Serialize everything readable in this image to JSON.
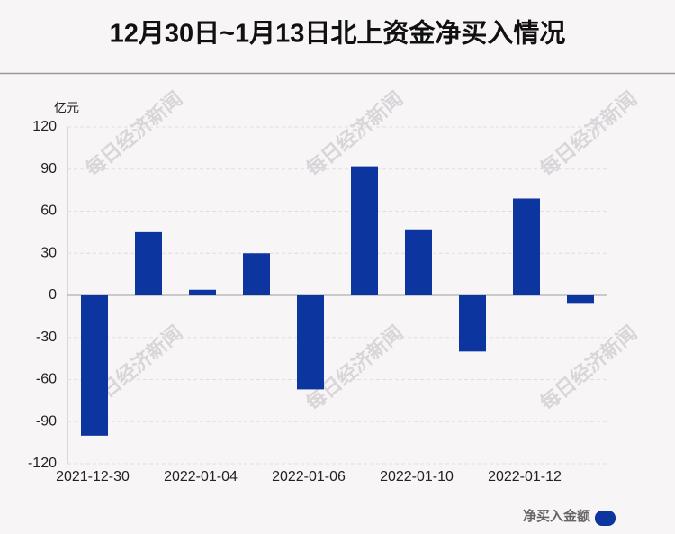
{
  "chart_data": {
    "type": "bar",
    "title": "12月30日~1月13日北上资金净买入情况",
    "y_unit": "亿元",
    "watermark": "每日经济新闻",
    "categories": [
      "2021-12-30",
      null,
      "2022-01-04",
      null,
      "2022-01-06",
      null,
      "2022-01-10",
      null,
      "2022-01-12",
      null
    ],
    "series": [
      {
        "name": "净买入金额",
        "color": "#0d35a0",
        "values": [
          -100,
          45,
          4,
          30,
          -67,
          92,
          47,
          -40,
          69,
          -6
        ]
      }
    ],
    "ylim": [
      -120,
      120
    ],
    "yticks": [
      -120,
      -90,
      -60,
      -30,
      0,
      30,
      60,
      90,
      120
    ],
    "grid": true
  }
}
